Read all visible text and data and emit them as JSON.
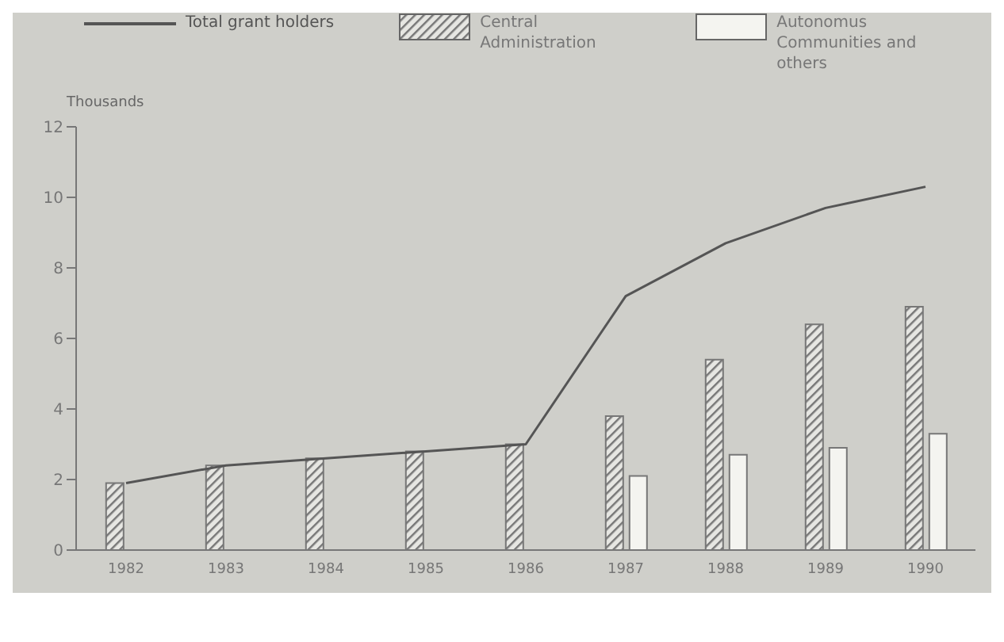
{
  "chart_data": {
    "type": "bar",
    "ylabel": "Thousands",
    "categories": [
      "1982",
      "1983",
      "1984",
      "1985",
      "1986",
      "1987",
      "1988",
      "1989",
      "1990"
    ],
    "series": [
      {
        "name": "Total grant holders",
        "type": "line",
        "color": "#555555",
        "values": [
          1.9,
          2.4,
          2.6,
          2.8,
          3.0,
          7.2,
          8.7,
          9.7,
          10.3
        ]
      },
      {
        "name": "Central Administration",
        "color": "#777777",
        "values": [
          1.9,
          2.4,
          2.6,
          2.8,
          3.0,
          3.8,
          5.4,
          6.4,
          6.9
        ]
      },
      {
        "name": "Autonomus Communities and others",
        "color": "#f4f4f0",
        "values": [
          null,
          null,
          null,
          null,
          null,
          2.1,
          2.7,
          2.9,
          3.3
        ]
      }
    ],
    "ylim": [
      0,
      12
    ],
    "yticks": [
      0,
      2,
      4,
      6,
      8,
      10,
      12
    ],
    "grid": false,
    "legend": "top",
    "marker": "none"
  }
}
